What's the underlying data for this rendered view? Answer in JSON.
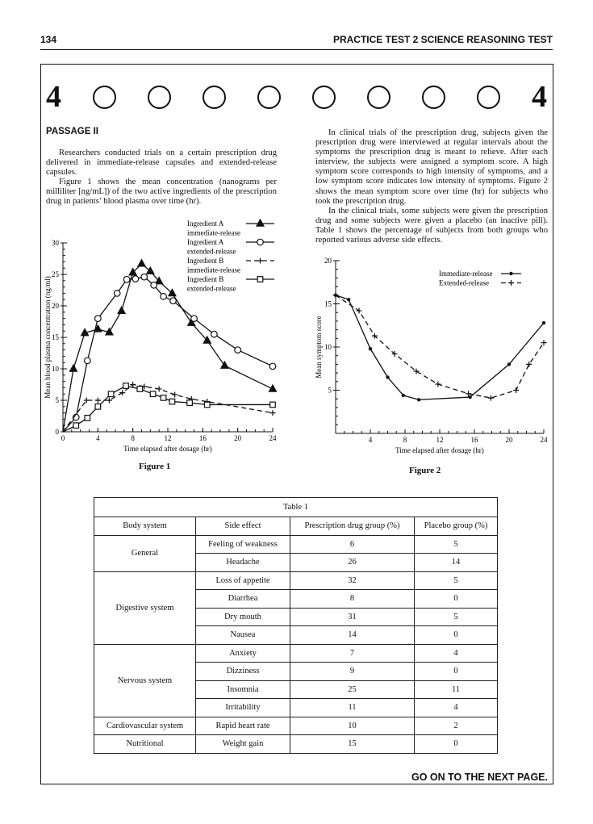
{
  "header": {
    "page_number": "134",
    "title": "PRACTICE TEST 2 SCIENCE REASONING TEST"
  },
  "section_marker": {
    "left": "4",
    "right": "4"
  },
  "passage": {
    "title": "PASSAGE II",
    "left_paragraphs": [
      "Researchers conducted trials on a certain prescription drug delivered in immediate-release capsules and extended-release capsules.",
      "Figure 1 shows the mean concentration (nanograms per milliliter [ng/mL]) of the two active ingredients of the prescription drug in patients’ blood plasma over time (hr)."
    ],
    "right_paragraphs": [
      "In clinical trials of the prescription drug, subjects given the prescription drug were interviewed at regular intervals about the symptoms the prescription drug is meant to relieve. After each interview, the subjects were assigned a symptom score. A high symptom score corresponds to high intensity of symptoms, and a low symptom score indicates low intensity of symptoms. Figure 2 shows the mean symptom score over time (hr) for subjects who took the prescription drug.",
      "In the clinical trials, some subjects were given the prescription drug and some subjects were given a placebo (an inactive pill). Table 1 shows the percentage of subjects from both groups who reported various adverse side effects."
    ]
  },
  "figure1": {
    "caption": "Figure 1"
  },
  "figure2": {
    "caption": "Figure 2"
  },
  "chart_data": [
    {
      "type": "line",
      "title": "",
      "xlabel": "Time elapsed after dosage (hr)",
      "ylabel": "Mean blood plasma concentration (ng/ml)",
      "xlim": [
        0,
        24
      ],
      "ylim": [
        0,
        30
      ],
      "x_ticks": [
        "0",
        "4",
        "8",
        "12",
        "16",
        "20",
        "24"
      ],
      "y_ticks": [
        "0",
        "5",
        "10",
        "15",
        "20",
        "25",
        "30"
      ],
      "legend_position": "top-right",
      "series": [
        {
          "name": "Ingredient A immediate-release",
          "legend_lines": [
            "Ingredient A",
            "immediate-release"
          ],
          "marker": "filled-triangle",
          "dash": "solid",
          "x": [
            0,
            1.2,
            2.5,
            4,
            5.3,
            6.7,
            8,
            9,
            10,
            11,
            12.5,
            14.7,
            16.5,
            18.5,
            24
          ],
          "y": [
            0,
            10,
            15.7,
            16.3,
            15.8,
            19.2,
            25.3,
            26.7,
            25.5,
            23.9,
            22,
            17.3,
            14.5,
            10.5,
            6.8
          ]
        },
        {
          "name": "Ingredient A extended-release",
          "legend_lines": [
            "Ingredient A",
            "extended-release"
          ],
          "marker": "open-circle",
          "dash": "solid",
          "x": [
            0,
            1.5,
            2.8,
            4,
            6.2,
            7.3,
            8.3,
            9.3,
            10.4,
            11.5,
            12.6,
            15,
            17.3,
            20,
            24
          ],
          "y": [
            0,
            2.3,
            11.3,
            18,
            22,
            24.2,
            24.3,
            24.6,
            23.3,
            21.5,
            20.8,
            18,
            15.5,
            13,
            10.4
          ]
        },
        {
          "name": "Ingredient B immediate-release",
          "legend_lines": [
            "Ingredient B",
            "immediate-release"
          ],
          "marker": "plus",
          "dash": "dashed",
          "x": [
            0,
            2.7,
            4,
            5.3,
            6.8,
            8,
            9.3,
            11,
            12.8,
            14.7,
            16.5,
            24
          ],
          "y": [
            0,
            5,
            5,
            5,
            6.2,
            7.5,
            7.2,
            6.8,
            5.9,
            5.2,
            4.8,
            3
          ]
        },
        {
          "name": "Ingredient B extended-release",
          "legend_lines": [
            "Ingredient B",
            "extended-release"
          ],
          "marker": "open-square",
          "dash": "solid",
          "x": [
            0,
            1.5,
            2.8,
            4,
            5.5,
            7.2,
            8.8,
            10.3,
            11.5,
            12.5,
            14.5,
            16.5,
            24
          ],
          "y": [
            0,
            1,
            2.2,
            4,
            6,
            7.3,
            6.8,
            6,
            5.4,
            4.8,
            4.6,
            4.3,
            4.3
          ]
        }
      ]
    },
    {
      "type": "line",
      "title": "",
      "xlabel": "Time elapsed after dosage (hr)",
      "ylabel": "Mean symptom score",
      "xlim": [
        0,
        24
      ],
      "ylim": [
        0,
        20
      ],
      "x_ticks": [
        "4",
        "8",
        "12",
        "16",
        "20",
        "24"
      ],
      "y_ticks": [
        "5",
        "10",
        "15",
        "20"
      ],
      "legend_position": "top-right",
      "series": [
        {
          "name": "Immediate-release",
          "legend_lines": [
            "Immediate-release"
          ],
          "marker": "dot",
          "dash": "solid",
          "x": [
            0,
            1.5,
            4,
            6,
            7.8,
            9.6,
            15.5,
            20,
            24
          ],
          "y": [
            16,
            15.5,
            9.8,
            6.5,
            4.4,
            3.9,
            4.2,
            8,
            12.8
          ]
        },
        {
          "name": "Extended-release",
          "legend_lines": [
            "Extended-release"
          ],
          "marker": "plus",
          "dash": "dashed",
          "x": [
            0,
            2.7,
            4.5,
            6.8,
            9.3,
            11.8,
            15.3,
            17.9,
            20.8,
            22.3,
            24
          ],
          "y": [
            16,
            14.2,
            11.3,
            9.2,
            7.2,
            5.7,
            4.6,
            4.1,
            5,
            8,
            10.5
          ]
        }
      ]
    }
  ],
  "table": {
    "caption": "Table 1",
    "headers": [
      "Body system",
      "Side effect",
      "Prescription drug group (%)",
      "Placebo group (%)"
    ],
    "groups": [
      {
        "system": "General",
        "rows": [
          [
            "Feeling of weakness",
            "6",
            "5"
          ],
          [
            "Headache",
            "26",
            "14"
          ]
        ]
      },
      {
        "system": "Digestive system",
        "rows": [
          [
            "Loss of appetite",
            "32",
            "5"
          ],
          [
            "Diarrhea",
            "8",
            "0"
          ],
          [
            "Dry mouth",
            "31",
            "5"
          ],
          [
            "Nausea",
            "14",
            "0"
          ]
        ]
      },
      {
        "system": "Nervous system",
        "rows": [
          [
            "Anxiety",
            "7",
            "4"
          ],
          [
            "Dizziness",
            "9",
            "0"
          ],
          [
            "Insomnia",
            "25",
            "11"
          ],
          [
            "Irritability",
            "11",
            "4"
          ]
        ]
      },
      {
        "system": "Cardiovascular system",
        "rows": [
          [
            "Rapid heart rate",
            "10",
            "2"
          ]
        ]
      },
      {
        "system": "Nutritional",
        "rows": [
          [
            "Weight gain",
            "15",
            "0"
          ]
        ]
      }
    ]
  },
  "footer": {
    "text": "GO ON TO THE NEXT PAGE."
  }
}
